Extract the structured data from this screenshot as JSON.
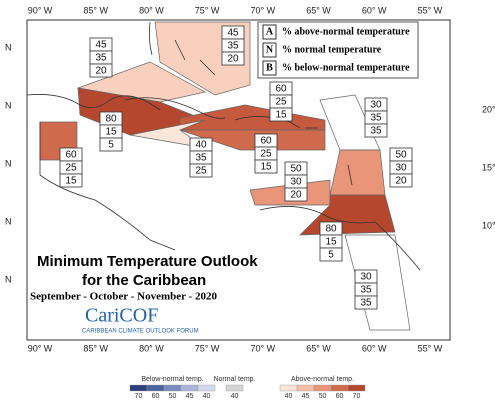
{
  "lon_labels": [
    "90° W",
    "85° W",
    "80° W",
    "75° W",
    "70° W",
    "65° W",
    "60° W",
    "55° W"
  ],
  "lat_labels_left": [
    "N",
    "N",
    "N",
    "N",
    "N"
  ],
  "lat_labels_right": [
    "20°",
    "15°",
    "10°"
  ],
  "legend": [
    {
      "key": "A",
      "text": "% above-normal temperature"
    },
    {
      "key": "N",
      "text": "% normal temperature"
    },
    {
      "key": "B",
      "text": "% below-normal temperature"
    }
  ],
  "regions": [
    {
      "above": 45,
      "normal": 35,
      "below": 20,
      "color": "#f9d0bd"
    },
    {
      "above": 45,
      "normal": 35,
      "below": 20,
      "color": "#f9d0bd"
    },
    {
      "above": 80,
      "normal": 15,
      "below": 5,
      "color": "#b4472e"
    },
    {
      "above": 60,
      "normal": 25,
      "below": 15,
      "color": "#d06a4c"
    },
    {
      "above": 60,
      "normal": 25,
      "below": 15,
      "color": "#c65a3e"
    },
    {
      "above": 40,
      "normal": 35,
      "below": 25,
      "color": "#fbe6dc"
    },
    {
      "above": 60,
      "normal": 25,
      "below": 15,
      "color": "#d06a4c"
    },
    {
      "above": 30,
      "normal": 35,
      "below": 35,
      "color": "#ffffff"
    },
    {
      "above": 50,
      "normal": 30,
      "below": 20,
      "color": "#e8957a"
    },
    {
      "above": 50,
      "normal": 30,
      "below": 20,
      "color": "#e8957a"
    },
    {
      "above": 80,
      "normal": 15,
      "below": 5,
      "color": "#b4472e"
    },
    {
      "above": 30,
      "normal": 35,
      "below": 35,
      "color": "#ffffff"
    }
  ],
  "title": [
    "Minimum Temperature Outlook",
    "for the Caribbean"
  ],
  "subtitle": "September - October - November - 2020",
  "logo": {
    "name": "CariCOF",
    "tagline": "CARIBBEAN CLIMATE OUTLOOK FORUM"
  },
  "colorbar": [
    {
      "label": "Below-normal temp.",
      "ticks": [
        70,
        60,
        50,
        45,
        40
      ],
      "colors": [
        "#2b3f7a",
        "#4d63a0",
        "#7a8cbf",
        "#a9b5d8",
        "#d3d9ec"
      ]
    },
    {
      "label": "Normal temp.",
      "ticks": [
        40
      ],
      "colors": [
        "#d4d4d4"
      ]
    },
    {
      "label": "Above-normal temp.",
      "ticks": [
        40,
        45,
        50,
        60,
        70
      ],
      "colors": [
        "#fbe3d8",
        "#f5bea6",
        "#e8957a",
        "#d06a4c",
        "#b4472e"
      ]
    }
  ]
}
